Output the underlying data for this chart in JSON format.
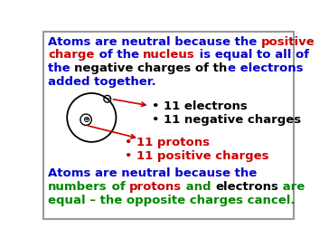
{
  "background_color": "#ffffff",
  "border_color": "#999999",
  "title_line1": [
    {
      "text": "Atoms are neutral because the ",
      "color": "#0000cc"
    },
    {
      "text": "positive",
      "color": "#cc0000"
    }
  ],
  "title_line2": [
    {
      "text": "charge",
      "color": "#cc0000"
    },
    {
      "text": " of the ",
      "color": "#0000cc"
    },
    {
      "text": "nucleus",
      "color": "#cc0000"
    },
    {
      "text": " is equal to all of",
      "color": "#0000cc"
    }
  ],
  "title_line3": [
    {
      "text": "the ",
      "color": "#0000cc"
    },
    {
      "text": "negative charges of th",
      "color": "#000000"
    },
    {
      "text": "e",
      "color": "#0000cc"
    },
    {
      "text": " electrons",
      "color": "#0000cc"
    }
  ],
  "title_line4": [
    {
      "text": "added together.",
      "color": "#0000cc"
    }
  ],
  "bullet_electrons": [
    {
      "text": "11 electrons",
      "color": "#000000"
    },
    {
      "text": "11 negative charges",
      "color": "#000000"
    }
  ],
  "bullet_protons": [
    {
      "text": "11 protons",
      "color": "#cc0000"
    },
    {
      "text": "11 positive charges",
      "color": "#cc0000"
    }
  ],
  "bottom_line1": [
    {
      "text": "Atoms are neutral because the",
      "color": "#0000cc"
    }
  ],
  "bottom_line2": [
    {
      "text": "numbers",
      "color": "#008800"
    },
    {
      "text": " of ",
      "color": "#008800"
    },
    {
      "text": "protons",
      "color": "#cc0000"
    },
    {
      "text": " and ",
      "color": "#008800"
    },
    {
      "text": "electrons",
      "color": "#000000"
    },
    {
      "text": " are",
      "color": "#008800"
    }
  ],
  "bottom_line3": [
    {
      "text": "equal – the opposite charges cancel.",
      "color": "#008800"
    }
  ],
  "fontsize": 9.5,
  "arrow_color": "#cc0000"
}
